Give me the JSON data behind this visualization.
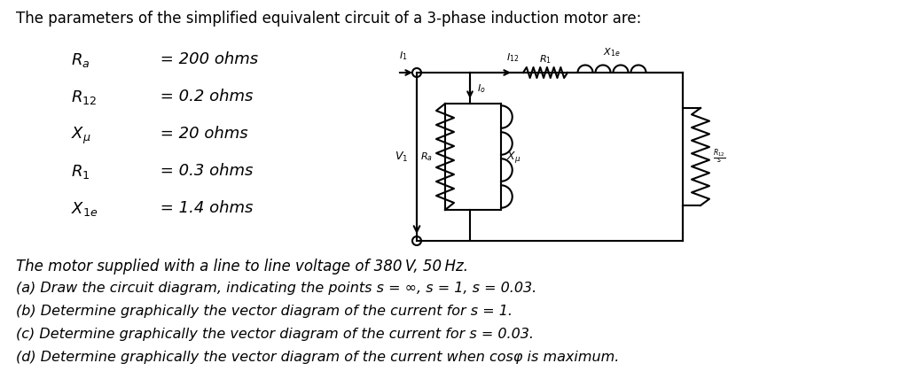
{
  "title": "The parameters of the simplified equivalent circuit of a 3-phase induction motor are:",
  "param_labels": [
    "$R_a$",
    "$R_{12}$",
    "$X_\\mu$",
    "$R_1$",
    "$X_{1e}$"
  ],
  "param_values": [
    " = 200 ohms",
    " = 0.2 ohms",
    " = 20 ohms",
    " = 0.3 ohms",
    " = 1.4 ohms"
  ],
  "bottom_line0": "The motor supplied with a line to line voltage of 380 V, 50 Hz.",
  "bottom_lines": [
    "(a) Draw the circuit diagram, indicating the points s = ∞, s = 1, s = 0.03.",
    "(b) Determine graphically the vector diagram of the current for s = 1.",
    "(c) Determine graphically the vector diagram of the current for s = 0.03.",
    "(d) Determine graphically the vector diagram of the current when cosφ is maximum."
  ],
  "bg_color": "#ffffff",
  "text_color": "#000000"
}
